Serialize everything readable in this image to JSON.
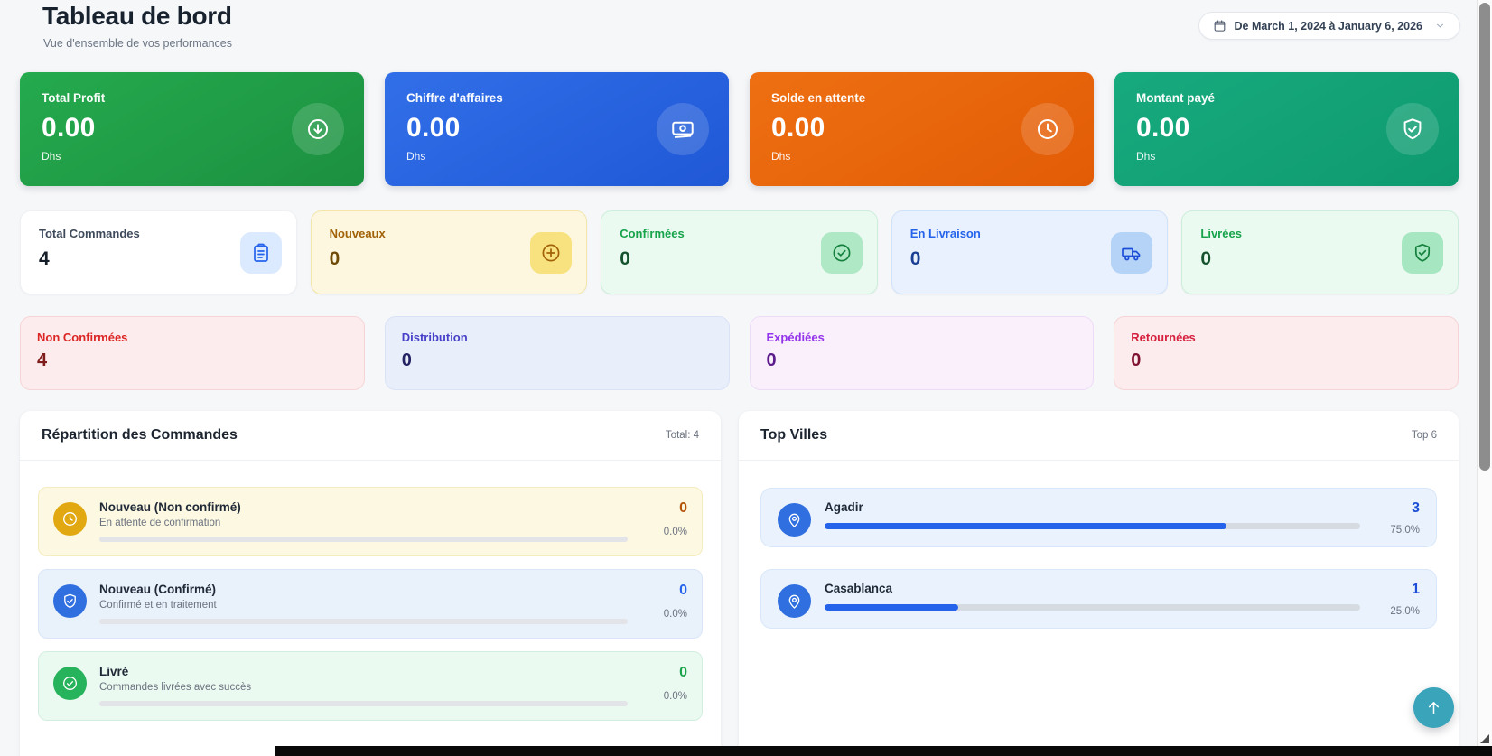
{
  "header": {
    "title": "Tableau de bord",
    "subtitle": "Vue d'ensemble de vos performances"
  },
  "date_filter": {
    "label": "De March 1, 2024 à January 6, 2026",
    "icon": "calendar-icon",
    "chevron_icon": "chevron-down-icon"
  },
  "stat_cards": [
    {
      "label": "Total Profit",
      "value": "0.00",
      "unit": "Dhs",
      "icon": "arrow-down-circle-icon",
      "color": "#21a049"
    },
    {
      "label": "Chiffre d'affaires",
      "value": "0.00",
      "unit": "Dhs",
      "icon": "banknote-icon",
      "color": "#2b66e0"
    },
    {
      "label": "Solde en attente",
      "value": "0.00",
      "unit": "Dhs",
      "icon": "clock-icon",
      "color": "#e9660e"
    },
    {
      "label": "Montant payé",
      "value": "0.00",
      "unit": "Dhs",
      "icon": "shield-check-icon",
      "color": "#12a276"
    }
  ],
  "count_cards": [
    {
      "label": "Total Commandes",
      "value": "4",
      "icon": "clipboard-icon",
      "accent": "#2563eb"
    },
    {
      "label": "Nouveaux",
      "value": "0",
      "icon": "plus-circle-icon",
      "accent": "#a16207"
    },
    {
      "label": "Confirmées",
      "value": "0",
      "icon": "check-circle-icon",
      "accent": "#16a34a"
    },
    {
      "label": "En Livraison",
      "value": "0",
      "icon": "truck-icon",
      "accent": "#2563eb"
    },
    {
      "label": "Livrées",
      "value": "0",
      "icon": "shield-check-icon",
      "accent": "#16a34a"
    }
  ],
  "status_cards": [
    {
      "label": "Non Confirmées",
      "value": "4",
      "accent": "#dc2626"
    },
    {
      "label": "Distribution",
      "value": "0",
      "accent": "#4740c8"
    },
    {
      "label": "Expédiées",
      "value": "0",
      "accent": "#9333ea"
    },
    {
      "label": "Retournées",
      "value": "0",
      "accent": "#d61f3e"
    }
  ],
  "orders_panel": {
    "title": "Répartition des Commandes",
    "meta": "Total: 4",
    "items": [
      {
        "title": "Nouveau (Non confirmé)",
        "subtitle": "En attente de confirmation",
        "value": "0",
        "percent": "0.0%",
        "bar_percent": 0,
        "icon": "clock-icon",
        "accent": "#e2a812"
      },
      {
        "title": "Nouveau (Confirmé)",
        "subtitle": "Confirmé et en traitement",
        "value": "0",
        "percent": "0.0%",
        "bar_percent": 0,
        "icon": "shield-check-icon",
        "accent": "#2f6fe0"
      },
      {
        "title": "Livré",
        "subtitle": "Commandes livrées avec succès",
        "value": "0",
        "percent": "0.0%",
        "bar_percent": 0,
        "icon": "check-circle-icon",
        "accent": "#27b35c"
      }
    ]
  },
  "cities_panel": {
    "title": "Top Villes",
    "meta": "Top 6",
    "items": [
      {
        "name": "Agadir",
        "value": "3",
        "percent": "75.0%",
        "bar_percent": 75,
        "icon": "map-pin-icon",
        "bar_color": "#2563eb"
      },
      {
        "name": "Casablanca",
        "value": "1",
        "percent": "25.0%",
        "bar_percent": 25,
        "icon": "map-pin-icon",
        "bar_color": "#2563eb"
      }
    ]
  },
  "floating_button": {
    "icon": "arrow-up-icon",
    "color": "#3aa4ba"
  }
}
